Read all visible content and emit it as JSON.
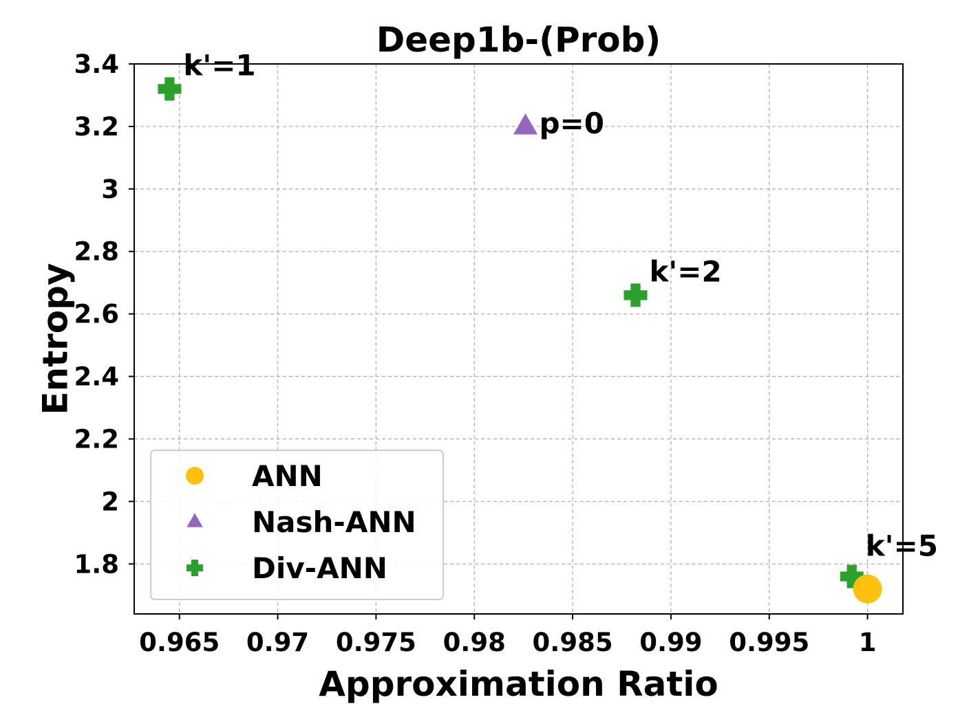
{
  "chart_data": {
    "type": "scatter",
    "title": "Deep1b-(Prob)",
    "xlabel": "Approximation Ratio",
    "ylabel": "Entropy",
    "xlim": [
      0.9627,
      1.0018
    ],
    "ylim": [
      1.64,
      3.4
    ],
    "grid": true,
    "legend_position": "lower-left",
    "x_ticks": [
      {
        "value": 0.965,
        "label": "0.965"
      },
      {
        "value": 0.97,
        "label": "0.97"
      },
      {
        "value": 0.975,
        "label": "0.975"
      },
      {
        "value": 0.98,
        "label": "0.98"
      },
      {
        "value": 0.985,
        "label": "0.985"
      },
      {
        "value": 0.99,
        "label": "0.99"
      },
      {
        "value": 0.995,
        "label": "0.995"
      },
      {
        "value": 1.0,
        "label": "1"
      }
    ],
    "y_ticks": [
      {
        "value": 1.8,
        "label": "1.8"
      },
      {
        "value": 2.0,
        "label": "2"
      },
      {
        "value": 2.2,
        "label": "2.2"
      },
      {
        "value": 2.4,
        "label": "2.4"
      },
      {
        "value": 2.6,
        "label": "2.6"
      },
      {
        "value": 2.8,
        "label": "2.8"
      },
      {
        "value": 3.0,
        "label": "3"
      },
      {
        "value": 3.2,
        "label": "3.2"
      },
      {
        "value": 3.4,
        "label": "3.4"
      }
    ],
    "series": [
      {
        "name": "ANN",
        "marker": "circle",
        "color": "#FDC10E",
        "points": [
          {
            "x": 1.0,
            "y": 1.72
          }
        ]
      },
      {
        "name": "Nash-ANN",
        "marker": "triangle",
        "color": "#9467BD",
        "points": [
          {
            "x": 0.9826,
            "y": 3.2,
            "label": "p=0"
          }
        ]
      },
      {
        "name": "Div-ANN",
        "marker": "plus",
        "color": "#2CA02C",
        "points": [
          {
            "x": 0.9645,
            "y": 3.32,
            "label": "k'=1"
          },
          {
            "x": 0.9882,
            "y": 2.66,
            "label": "k'=2"
          },
          {
            "x": 0.9992,
            "y": 1.76,
            "label": "k'=5"
          }
        ]
      }
    ]
  }
}
